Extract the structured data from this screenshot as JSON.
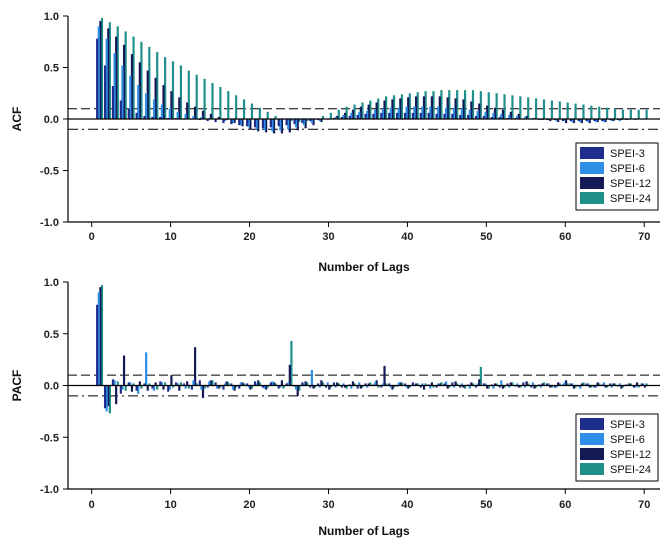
{
  "chart_data": [
    {
      "type": "bar",
      "panel": "acf",
      "xlabel": "Number of Lags",
      "ylabel": "ACF",
      "xlim": [
        -3,
        72
      ],
      "ylim": [
        -1.0,
        1.0
      ],
      "xticks": [
        0,
        10,
        20,
        30,
        40,
        50,
        60,
        70
      ],
      "yticks": [
        1.0,
        0.5,
        0.0,
        -0.5,
        -1.0
      ],
      "ytick_labels": [
        "1.0",
        "0.5",
        "0.0",
        "-0.5",
        "-1.0"
      ],
      "confidence_bounds": [
        0.1,
        -0.1
      ],
      "legend_position": "bottom-right",
      "x": [
        1,
        2,
        3,
        4,
        5,
        6,
        7,
        8,
        9,
        10,
        11,
        12,
        13,
        14,
        15,
        16,
        17,
        18,
        19,
        20,
        21,
        22,
        23,
        24,
        25,
        26,
        27,
        28,
        29,
        30,
        31,
        32,
        33,
        34,
        35,
        36,
        37,
        38,
        39,
        40,
        41,
        42,
        43,
        44,
        45,
        46,
        47,
        48,
        49,
        50,
        51,
        52,
        53,
        54,
        55,
        56,
        57,
        58,
        59,
        60,
        61,
        62,
        63,
        64,
        65,
        66,
        67,
        68,
        69,
        70
      ],
      "series": [
        {
          "name": "SPEI-3",
          "color": "#1f2d8c",
          "values": [
            0.78,
            0.52,
            0.32,
            0.18,
            0.1,
            0.06,
            0.03,
            0.02,
            0.02,
            0.01,
            0.01,
            0.0,
            0.0,
            -0.01,
            -0.02,
            -0.03,
            -0.04,
            -0.05,
            -0.06,
            -0.07,
            -0.08,
            -0.09,
            -0.08,
            -0.07,
            -0.06,
            -0.05,
            -0.04,
            -0.02,
            -0.01,
            0.0,
            0.01,
            0.02,
            0.03,
            0.04,
            0.05,
            0.05,
            0.06,
            0.06,
            0.06,
            0.06,
            0.06,
            0.06,
            0.06,
            0.05,
            0.05,
            0.05,
            0.04,
            0.04,
            0.03,
            0.03,
            0.02,
            0.02,
            0.01,
            0.01,
            0.0,
            0.0,
            -0.01,
            -0.01,
            -0.01,
            -0.02,
            -0.02,
            -0.02,
            -0.02,
            -0.02,
            -0.02,
            -0.01,
            -0.01,
            -0.01,
            0.0,
            0.0
          ]
        },
        {
          "name": "SPEI-6",
          "color": "#2f8fe8",
          "values": [
            0.9,
            0.78,
            0.64,
            0.52,
            0.42,
            0.33,
            0.25,
            0.19,
            0.14,
            0.1,
            0.07,
            0.05,
            0.03,
            0.02,
            0.01,
            0.0,
            -0.02,
            -0.04,
            -0.06,
            -0.08,
            -0.1,
            -0.11,
            -0.12,
            -0.11,
            -0.1,
            -0.08,
            -0.06,
            -0.04,
            -0.02,
            0.0,
            0.02,
            0.04,
            0.06,
            0.07,
            0.08,
            0.09,
            0.1,
            0.11,
            0.11,
            0.12,
            0.12,
            0.12,
            0.12,
            0.12,
            0.11,
            0.11,
            0.1,
            0.09,
            0.08,
            0.07,
            0.06,
            0.05,
            0.04,
            0.03,
            0.02,
            0.01,
            0.0,
            -0.01,
            -0.02,
            -0.02,
            -0.03,
            -0.03,
            -0.03,
            -0.03,
            -0.03,
            -0.02,
            -0.02,
            -0.01,
            -0.01,
            0.0
          ]
        },
        {
          "name": "SPEI-12",
          "color": "#141a55",
          "values": [
            0.95,
            0.88,
            0.8,
            0.72,
            0.63,
            0.55,
            0.47,
            0.4,
            0.33,
            0.27,
            0.21,
            0.16,
            0.12,
            0.08,
            0.05,
            0.02,
            -0.01,
            -0.04,
            -0.07,
            -0.1,
            -0.12,
            -0.13,
            -0.14,
            -0.14,
            -0.13,
            -0.11,
            -0.09,
            -0.06,
            -0.03,
            0.0,
            0.03,
            0.06,
            0.09,
            0.12,
            0.14,
            0.16,
            0.18,
            0.19,
            0.2,
            0.21,
            0.22,
            0.22,
            0.22,
            0.22,
            0.21,
            0.2,
            0.19,
            0.17,
            0.15,
            0.13,
            0.11,
            0.09,
            0.07,
            0.05,
            0.03,
            0.01,
            -0.01,
            -0.02,
            -0.03,
            -0.04,
            -0.04,
            -0.04,
            -0.04,
            -0.03,
            -0.03,
            -0.02,
            -0.01,
            0.0,
            0.0,
            0.0
          ]
        },
        {
          "name": "SPEI-24",
          "color": "#1f8f8a",
          "values": [
            0.98,
            0.94,
            0.9,
            0.85,
            0.8,
            0.75,
            0.7,
            0.65,
            0.6,
            0.56,
            0.52,
            0.47,
            0.43,
            0.39,
            0.35,
            0.31,
            0.27,
            0.23,
            0.19,
            0.15,
            0.11,
            0.07,
            0.03,
            0.0,
            -0.02,
            -0.03,
            -0.02,
            0.0,
            0.03,
            0.06,
            0.09,
            0.12,
            0.14,
            0.16,
            0.18,
            0.2,
            0.22,
            0.23,
            0.24,
            0.25,
            0.26,
            0.27,
            0.27,
            0.28,
            0.28,
            0.28,
            0.28,
            0.28,
            0.27,
            0.26,
            0.25,
            0.24,
            0.23,
            0.22,
            0.21,
            0.2,
            0.19,
            0.18,
            0.17,
            0.16,
            0.15,
            0.14,
            0.13,
            0.12,
            0.11,
            0.1,
            0.09,
            0.09,
            0.09,
            0.09
          ]
        }
      ]
    },
    {
      "type": "bar",
      "panel": "pacf",
      "xlabel": "Number of Lags",
      "ylabel": "PACF",
      "xlim": [
        -3,
        72
      ],
      "ylim": [
        -1.0,
        1.0
      ],
      "xticks": [
        0,
        10,
        20,
        30,
        40,
        50,
        60,
        70
      ],
      "yticks": [
        1.0,
        0.5,
        0.0,
        -0.5,
        -1.0
      ],
      "ytick_labels": [
        "1.0",
        "0.5",
        "0.0",
        "-0.5",
        "-1.0"
      ],
      "confidence_bounds": [
        0.1,
        -0.1
      ],
      "legend_position": "bottom-right",
      "x": [
        1,
        2,
        3,
        4,
        5,
        6,
        7,
        8,
        9,
        10,
        11,
        12,
        13,
        14,
        15,
        16,
        17,
        18,
        19,
        20,
        21,
        22,
        23,
        24,
        25,
        26,
        27,
        28,
        29,
        30,
        31,
        32,
        33,
        34,
        35,
        36,
        37,
        38,
        39,
        40,
        41,
        42,
        43,
        44,
        45,
        46,
        47,
        48,
        49,
        50,
        51,
        52,
        53,
        54,
        55,
        56,
        57,
        58,
        59,
        60,
        61,
        62,
        63,
        64,
        65,
        66,
        67,
        68,
        69,
        70
      ],
      "series": [
        {
          "name": "SPEI-3",
          "color": "#1f2d8c",
          "values": [
            0.78,
            -0.22,
            0.06,
            -0.08,
            0.03,
            -0.05,
            0.02,
            -0.03,
            0.04,
            -0.06,
            0.03,
            0.02,
            -0.04,
            0.05,
            -0.02,
            0.03,
            -0.04,
            0.02,
            -0.03,
            0.02,
            0.04,
            -0.02,
            0.03,
            -0.03,
            0.02,
            -0.01,
            0.03,
            -0.02,
            0.02,
            -0.02,
            0.03,
            -0.02,
            0.01,
            -0.03,
            0.02,
            0.01,
            -0.02,
            0.02,
            -0.01,
            0.02,
            0.03,
            -0.02,
            0.01,
            -0.02,
            0.02,
            0.03,
            -0.02,
            0.01,
            -0.02,
            0.02,
            0.01,
            -0.02,
            0.02,
            -0.01,
            0.03,
            -0.02,
            0.01,
            0.02,
            -0.02,
            0.01,
            0.02,
            -0.01,
            0.02,
            -0.02,
            0.01,
            0.02,
            -0.01,
            0.01,
            -0.02,
            0.02
          ]
        },
        {
          "name": "SPEI-6",
          "color": "#2f8fe8",
          "values": [
            0.9,
            -0.25,
            0.05,
            -0.04,
            0.03,
            -0.08,
            0.32,
            -0.05,
            0.03,
            -0.04,
            0.02,
            -0.03,
            0.05,
            -0.04,
            0.04,
            -0.03,
            0.02,
            -0.04,
            0.03,
            -0.02,
            0.02,
            -0.03,
            0.04,
            -0.02,
            0.03,
            -0.04,
            0.02,
            0.15,
            -0.02,
            0.03,
            -0.02,
            0.02,
            -0.03,
            0.03,
            -0.02,
            0.03,
            0.02,
            -0.02,
            0.03,
            -0.02,
            0.01,
            0.02,
            -0.03,
            0.02,
            0.04,
            -0.02,
            0.02,
            -0.03,
            0.02,
            0.02,
            -0.03,
            0.05,
            -0.02,
            0.02,
            -0.02,
            0.03,
            -0.02,
            0.02,
            -0.02,
            0.03,
            0.02,
            -0.03,
            0.02,
            -0.02,
            0.03,
            -0.02,
            0.02,
            0.01,
            -0.02,
            0.02
          ]
        },
        {
          "name": "SPEI-12",
          "color": "#141a55",
          "values": [
            0.95,
            -0.2,
            -0.18,
            0.29,
            -0.06,
            0.04,
            -0.05,
            0.03,
            -0.04,
            0.1,
            -0.05,
            0.04,
            0.37,
            -0.12,
            0.05,
            -0.03,
            0.04,
            -0.05,
            0.03,
            -0.04,
            0.05,
            -0.04,
            0.03,
            0.05,
            0.2,
            -0.1,
            0.04,
            -0.03,
            0.05,
            -0.04,
            0.03,
            -0.02,
            0.04,
            -0.03,
            0.02,
            0.05,
            0.19,
            -0.04,
            0.03,
            -0.03,
            0.02,
            -0.04,
            0.03,
            0.02,
            -0.03,
            0.04,
            -0.02,
            0.03,
            0.06,
            -0.03,
            0.02,
            -0.03,
            0.03,
            -0.02,
            0.04,
            -0.03,
            0.02,
            -0.02,
            0.03,
            0.05,
            -0.03,
            0.02,
            -0.02,
            0.03,
            -0.02,
            0.02,
            -0.03,
            0.02,
            0.03,
            -0.02
          ]
        },
        {
          "name": "SPEI-24",
          "color": "#1f8f8a",
          "values": [
            0.97,
            -0.27,
            0.04,
            -0.05,
            0.02,
            -0.03,
            0.02,
            -0.04,
            0.03,
            -0.02,
            0.03,
            -0.03,
            0.02,
            -0.03,
            0.05,
            -0.02,
            0.03,
            -0.02,
            0.02,
            -0.03,
            0.03,
            -0.02,
            0.02,
            -0.03,
            0.43,
            -0.05,
            0.03,
            -0.02,
            0.03,
            -0.02,
            0.02,
            -0.03,
            0.02,
            -0.02,
            0.03,
            -0.02,
            0.02,
            -0.02,
            0.03,
            -0.02,
            0.02,
            0.02,
            -0.02,
            0.03,
            -0.02,
            0.02,
            -0.03,
            0.02,
            0.18,
            -0.03,
            0.02,
            -0.02,
            0.03,
            -0.02,
            0.02,
            -0.02,
            0.03,
            -0.02,
            0.02,
            0.02,
            -0.02,
            0.03,
            -0.02,
            0.02,
            -0.02,
            0.02,
            -0.02,
            0.02,
            -0.02,
            0.02
          ]
        }
      ]
    }
  ]
}
